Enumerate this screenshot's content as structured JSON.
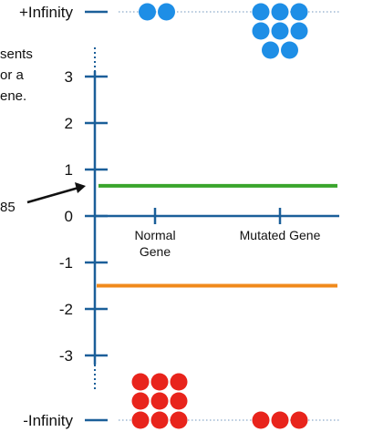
{
  "chart_data": {
    "type": "scatter",
    "axis": {
      "y_ticks": [
        "3",
        "2",
        "1",
        "0",
        "-1",
        "-2",
        "-3"
      ],
      "y_tick_values": [
        3,
        2,
        1,
        0,
        -1,
        -2,
        -3
      ],
      "ylim": [
        -3.5,
        3.5
      ],
      "top_label": "+Infinity",
      "bottom_label": "-Infinity",
      "categories": [
        {
          "id": "normal",
          "lines": [
            "Normal",
            "Gene"
          ]
        },
        {
          "id": "mutated",
          "lines": [
            "Mutated Gene"
          ]
        }
      ]
    },
    "points": {
      "top": {
        "normal": 2,
        "mutated": 8,
        "color": "#1e8ee6"
      },
      "bottom": {
        "normal": 9,
        "mutated": 3,
        "color": "#e8241c"
      }
    },
    "thresholds": [
      {
        "value": 0.65,
        "color": "#3aa52c"
      },
      {
        "value": -1.5,
        "color": "#f08a1c"
      }
    ],
    "annotation": {
      "partial_text_lines": [
        "sents",
        "or a",
        "ene."
      ],
      "arrow_label": "85"
    }
  },
  "colors": {
    "axis": "#1b5f99",
    "dotted": "#6f95bd",
    "text": "#111111"
  }
}
